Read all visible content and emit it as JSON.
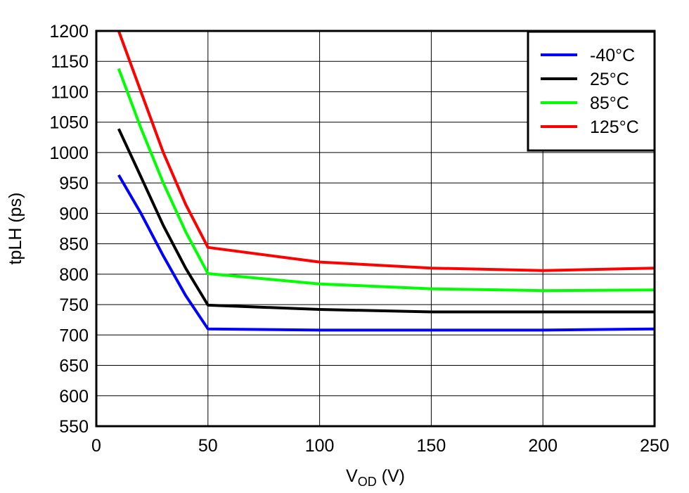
{
  "chart_data": {
    "type": "line",
    "title": "",
    "xlabel_main": "V",
    "xlabel_sub": "OD",
    "xlabel_unit": " (V)",
    "ylabel": "tpLH (ps)",
    "xlim": [
      0,
      250
    ],
    "ylim": [
      550,
      1200
    ],
    "xticks": [
      0,
      50,
      100,
      150,
      200,
      250
    ],
    "yticks": [
      550,
      600,
      650,
      700,
      750,
      800,
      850,
      900,
      950,
      1000,
      1050,
      1100,
      1150,
      1200
    ],
    "grid": true,
    "legend_position": "top-right",
    "series": [
      {
        "name": "-40°C",
        "color": "#0000ff",
        "points": [
          [
            10,
            963
          ],
          [
            20,
            900
          ],
          [
            30,
            830
          ],
          [
            40,
            765
          ],
          [
            50,
            710
          ],
          [
            100,
            708
          ],
          [
            150,
            708
          ],
          [
            200,
            708
          ],
          [
            250,
            710
          ]
        ]
      },
      {
        "name": "25°C",
        "color": "#000000",
        "points": [
          [
            10,
            1039
          ],
          [
            20,
            960
          ],
          [
            30,
            880
          ],
          [
            40,
            810
          ],
          [
            50,
            749
          ],
          [
            100,
            742
          ],
          [
            150,
            738
          ],
          [
            200,
            738
          ],
          [
            250,
            738
          ]
        ]
      },
      {
        "name": "85°C",
        "color": "#00ff00",
        "points": [
          [
            10,
            1138
          ],
          [
            20,
            1040
          ],
          [
            30,
            950
          ],
          [
            40,
            870
          ],
          [
            50,
            801
          ],
          [
            100,
            784
          ],
          [
            150,
            776
          ],
          [
            200,
            773
          ],
          [
            250,
            774
          ]
        ]
      },
      {
        "name": "125°C",
        "color": "#ff0000",
        "points": [
          [
            10,
            1200
          ],
          [
            20,
            1100
          ],
          [
            30,
            1000
          ],
          [
            40,
            915
          ],
          [
            50,
            844
          ],
          [
            100,
            820
          ],
          [
            150,
            810
          ],
          [
            200,
            806
          ],
          [
            250,
            810
          ]
        ]
      }
    ]
  }
}
